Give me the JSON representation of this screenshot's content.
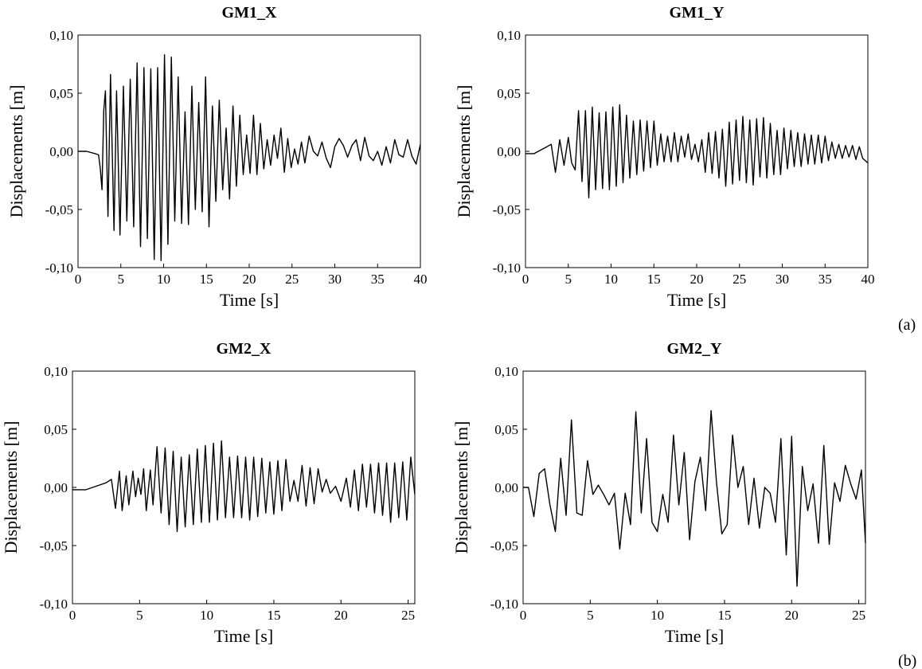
{
  "figure": {
    "row_labels": [
      "(a)",
      "(b)"
    ]
  },
  "chart_data": [
    {
      "type": "line",
      "title": "GM1_X",
      "xlabel": "Time [s]",
      "ylabel": "Displacements [m]",
      "xlim": [
        0,
        40
      ],
      "ylim": [
        -0.1,
        0.1
      ],
      "xticks": [
        "0",
        "5",
        "10",
        "15",
        "20",
        "25",
        "30",
        "35",
        "40"
      ],
      "yticks": [
        "-0,10",
        "-0,05",
        "0,00",
        "0,05",
        "0,10"
      ],
      "grid": false,
      "series": [
        {
          "x": [
            0,
            1,
            2,
            2.4,
            2.6,
            2.8,
            3.0,
            3.2,
            3.5,
            3.8,
            4.2,
            4.5,
            4.9,
            5.3,
            5.7,
            6.1,
            6.5,
            6.9,
            7.3,
            7.7,
            8.1,
            8.5,
            8.9,
            9.3,
            9.7,
            10.1,
            10.5,
            10.9,
            11.3,
            11.7,
            12.1,
            12.5,
            12.9,
            13.3,
            13.7,
            14.1,
            14.5,
            14.9,
            15.3,
            15.7,
            16.1,
            16.5,
            16.9,
            17.3,
            17.7,
            18.1,
            18.5,
            18.9,
            19.3,
            19.7,
            20.1,
            20.5,
            20.9,
            21.3,
            21.7,
            22.1,
            22.5,
            22.9,
            23.3,
            23.7,
            24.1,
            24.5,
            24.9,
            25.3,
            25.7,
            26.1,
            26.5,
            27.0,
            27.5,
            28.0,
            28.5,
            29.0,
            29.5,
            30.0,
            30.5,
            31.0,
            31.5,
            32.0,
            32.5,
            33.0,
            33.5,
            34.0,
            34.5,
            35.0,
            35.5,
            36.0,
            36.5,
            37.0,
            37.5,
            38.0,
            38.5,
            39.0,
            39.5,
            40.0
          ],
          "y": [
            0,
            0,
            -0.002,
            -0.003,
            -0.015,
            -0.033,
            0.035,
            0.052,
            -0.056,
            0.066,
            -0.068,
            0.052,
            -0.072,
            0.056,
            -0.06,
            0.062,
            -0.065,
            0.076,
            -0.082,
            0.072,
            -0.075,
            0.071,
            -0.093,
            0.072,
            -0.094,
            0.083,
            -0.08,
            0.081,
            -0.06,
            0.064,
            -0.062,
            0.034,
            -0.063,
            0.056,
            -0.05,
            0.042,
            -0.052,
            0.064,
            -0.065,
            0.039,
            -0.043,
            0.044,
            -0.033,
            0.02,
            -0.041,
            0.039,
            -0.03,
            0.031,
            -0.02,
            0.014,
            -0.019,
            0.031,
            -0.02,
            0.024,
            -0.015,
            0.01,
            -0.012,
            0.014,
            -0.006,
            0.02,
            -0.018,
            0.011,
            -0.014,
            0.002,
            -0.011,
            0.008,
            -0.01,
            0.013,
            0.0,
            -0.004,
            0.008,
            -0.006,
            -0.014,
            0.004,
            0.011,
            0.005,
            -0.005,
            0.005,
            0.01,
            -0.008,
            0.012,
            -0.004,
            -0.008,
            0.0,
            -0.012,
            0.004,
            -0.01,
            0.01,
            -0.003,
            -0.005,
            0.01,
            -0.004,
            -0.011,
            0.006
          ]
        }
      ]
    },
    {
      "type": "line",
      "title": "GM1_Y",
      "xlabel": "Time [s]",
      "ylabel": "Displacements [m]",
      "xlim": [
        0,
        40
      ],
      "ylim": [
        -0.1,
        0.1
      ],
      "xticks": [
        "0",
        "5",
        "10",
        "15",
        "20",
        "25",
        "30",
        "35",
        "40"
      ],
      "yticks": [
        "-0,10",
        "-0,05",
        "0,00",
        "0,05",
        "0,10"
      ],
      "grid": false,
      "series": [
        {
          "x": [
            0,
            1,
            1.5,
            2,
            2.5,
            3.0,
            3.5,
            4.0,
            4.5,
            5.0,
            5.4,
            5.8,
            6.2,
            6.6,
            7.0,
            7.4,
            7.8,
            8.2,
            8.6,
            9.0,
            9.4,
            9.8,
            10.2,
            10.6,
            11.0,
            11.4,
            11.8,
            12.2,
            12.6,
            13.0,
            13.4,
            13.8,
            14.2,
            14.6,
            15.0,
            15.4,
            15.8,
            16.2,
            16.6,
            17.0,
            17.4,
            17.8,
            18.2,
            18.6,
            19.0,
            19.4,
            19.8,
            20.2,
            20.6,
            21.0,
            21.4,
            21.8,
            22.2,
            22.6,
            23.0,
            23.4,
            23.8,
            24.2,
            24.6,
            25.0,
            25.4,
            25.8,
            26.2,
            26.6,
            27.0,
            27.4,
            27.8,
            28.2,
            28.6,
            29.0,
            29.4,
            29.8,
            30.2,
            30.6,
            31.0,
            31.4,
            31.8,
            32.2,
            32.6,
            33.0,
            33.4,
            33.8,
            34.2,
            34.6,
            35.0,
            35.4,
            35.8,
            36.2,
            36.6,
            37.0,
            37.4,
            37.8,
            38.2,
            38.6,
            39.0,
            39.4,
            40.0
          ],
          "y": [
            -0.002,
            -0.002,
            0.0,
            0.002,
            0.004,
            0.006,
            -0.018,
            0.01,
            -0.012,
            0.012,
            -0.01,
            -0.016,
            0.035,
            -0.026,
            0.035,
            -0.04,
            0.038,
            -0.033,
            0.033,
            -0.032,
            0.034,
            -0.033,
            0.038,
            -0.03,
            0.04,
            -0.027,
            0.031,
            -0.023,
            0.026,
            -0.02,
            0.027,
            -0.017,
            0.026,
            -0.014,
            0.026,
            -0.012,
            0.015,
            -0.009,
            0.013,
            -0.009,
            0.016,
            -0.009,
            0.013,
            -0.005,
            0.015,
            -0.007,
            0.006,
            -0.009,
            0.01,
            -0.018,
            0.016,
            -0.019,
            0.017,
            -0.023,
            0.019,
            -0.03,
            0.025,
            -0.028,
            0.027,
            -0.025,
            0.03,
            -0.027,
            0.027,
            -0.029,
            0.028,
            -0.022,
            0.029,
            -0.023,
            0.024,
            -0.02,
            0.018,
            -0.02,
            0.02,
            -0.015,
            0.018,
            -0.013,
            0.016,
            -0.013,
            0.015,
            -0.011,
            0.014,
            -0.011,
            0.014,
            -0.01,
            0.013,
            -0.008,
            0.008,
            -0.006,
            0.006,
            -0.006,
            0.005,
            -0.005,
            0.005,
            -0.007,
            0.004,
            -0.006,
            -0.01
          ]
        }
      ]
    },
    {
      "type": "line",
      "title": "GM2_X",
      "xlabel": "Time [s]",
      "ylabel": "Displacements [m]",
      "xlim": [
        0,
        25.5
      ],
      "ylim": [
        -0.1,
        0.1
      ],
      "xticks": [
        "0",
        "5",
        "10",
        "15",
        "20",
        "25"
      ],
      "yticks": [
        "-0,10",
        "-0,05",
        "0,00",
        "0,05",
        "0,10"
      ],
      "grid": false,
      "series": [
        {
          "x": [
            0,
            0.5,
            1,
            1.5,
            2,
            2.5,
            2.9,
            3.2,
            3.5,
            3.7,
            4.0,
            4.2,
            4.5,
            4.7,
            4.9,
            5.1,
            5.3,
            5.5,
            5.8,
            6.0,
            6.3,
            6.6,
            6.9,
            7.2,
            7.5,
            7.8,
            8.1,
            8.4,
            8.7,
            9.0,
            9.3,
            9.6,
            9.9,
            10.2,
            10.5,
            10.8,
            11.1,
            11.4,
            11.7,
            12.0,
            12.3,
            12.6,
            12.9,
            13.2,
            13.5,
            13.8,
            14.1,
            14.4,
            14.7,
            15.0,
            15.3,
            15.6,
            15.9,
            16.2,
            16.5,
            16.8,
            17.1,
            17.4,
            17.7,
            18.0,
            18.3,
            18.6,
            18.9,
            19.2,
            19.6,
            20.0,
            20.4,
            20.7,
            21.0,
            21.3,
            21.6,
            21.9,
            22.2,
            22.5,
            22.8,
            23.1,
            23.4,
            23.7,
            24.0,
            24.3,
            24.6,
            24.9,
            25.2,
            25.5
          ],
          "y": [
            -0.002,
            -0.002,
            -0.002,
            0.0,
            0.002,
            0.004,
            0.007,
            -0.018,
            0.014,
            -0.02,
            0.01,
            -0.015,
            0.014,
            -0.008,
            0.008,
            -0.006,
            0.016,
            -0.02,
            0.015,
            -0.015,
            0.035,
            -0.022,
            0.034,
            -0.032,
            0.031,
            -0.038,
            0.026,
            -0.034,
            0.028,
            -0.032,
            0.033,
            -0.03,
            0.036,
            -0.03,
            0.038,
            -0.028,
            0.04,
            -0.026,
            0.026,
            -0.026,
            0.027,
            -0.026,
            0.026,
            -0.028,
            0.026,
            -0.025,
            0.025,
            -0.022,
            0.022,
            -0.023,
            0.023,
            -0.02,
            0.024,
            -0.012,
            0.006,
            -0.012,
            0.019,
            -0.016,
            0.017,
            -0.014,
            0.016,
            -0.004,
            0.007,
            -0.005,
            0.001,
            -0.012,
            0.008,
            -0.017,
            0.015,
            -0.02,
            0.02,
            -0.017,
            0.02,
            -0.022,
            0.021,
            -0.024,
            0.021,
            -0.03,
            0.021,
            -0.026,
            0.022,
            -0.028,
            0.026,
            -0.006
          ]
        }
      ]
    },
    {
      "type": "line",
      "title": "GM2_Y",
      "xlabel": "Time [s]",
      "ylabel": "Displacements [m]",
      "xlim": [
        0,
        25.5
      ],
      "ylim": [
        -0.1,
        0.1
      ],
      "xticks": [
        "0",
        "5",
        "10",
        "15",
        "20",
        "25"
      ],
      "yticks": [
        "-0,10",
        "-0,05",
        "0,00",
        "0,05",
        "0,10"
      ],
      "grid": false,
      "series": [
        {
          "x": [
            0,
            0.4,
            0.8,
            1.2,
            1.6,
            2.0,
            2.4,
            2.8,
            3.2,
            3.6,
            4.0,
            4.4,
            4.8,
            5.2,
            5.6,
            6.0,
            6.4,
            6.8,
            7.2,
            7.6,
            8.0,
            8.4,
            8.8,
            9.2,
            9.6,
            10.0,
            10.4,
            10.8,
            11.2,
            11.6,
            12.0,
            12.4,
            12.8,
            13.2,
            13.6,
            14.0,
            14.4,
            14.8,
            15.2,
            15.6,
            16.0,
            16.4,
            16.8,
            17.2,
            17.6,
            18.0,
            18.4,
            18.8,
            19.2,
            19.6,
            20.0,
            20.4,
            20.8,
            21.2,
            21.6,
            22.0,
            22.4,
            22.8,
            23.2,
            23.6,
            24.0,
            24.4,
            24.8,
            25.2,
            25.5
          ],
          "y": [
            0.0,
            0.0,
            -0.025,
            0.012,
            0.016,
            -0.015,
            -0.038,
            0.025,
            -0.024,
            0.058,
            -0.022,
            -0.024,
            0.023,
            -0.006,
            0.002,
            -0.006,
            -0.015,
            -0.005,
            -0.053,
            -0.005,
            -0.032,
            0.065,
            -0.022,
            0.042,
            -0.03,
            -0.038,
            -0.006,
            -0.03,
            0.045,
            -0.015,
            0.03,
            -0.045,
            0.005,
            0.026,
            -0.02,
            0.066,
            0.005,
            -0.04,
            -0.032,
            0.045,
            0.0,
            0.018,
            -0.032,
            0.008,
            -0.035,
            0.0,
            -0.005,
            -0.03,
            0.042,
            -0.058,
            0.044,
            -0.085,
            0.018,
            -0.02,
            0.003,
            -0.048,
            0.036,
            -0.049,
            0.004,
            -0.012,
            0.019,
            0.003,
            -0.01,
            0.015,
            -0.048
          ]
        }
      ]
    }
  ]
}
